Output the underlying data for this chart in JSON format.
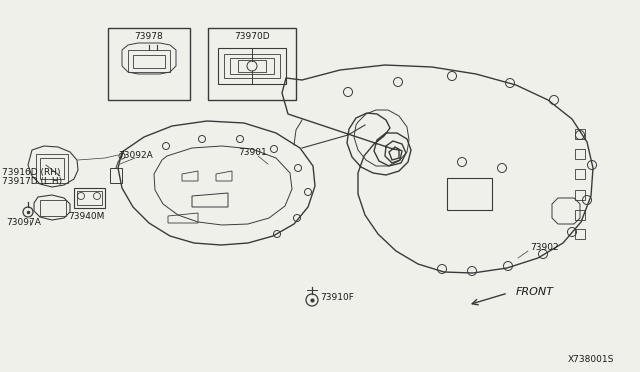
{
  "bg_color": "#f0f0eb",
  "line_color": "#3a3a3a",
  "diagram_id": "X738001S",
  "label_73978": "73978",
  "label_73970D": "73970D",
  "label_73902": "73902",
  "label_73901": "73901",
  "label_73092A": "73092A",
  "label_73940M": "73940M",
  "label_73097A": "73097A",
  "label_73916D": "73916D (RH)",
  "label_73917D": "73917D (L.H)",
  "label_73910F": "73910F",
  "label_FRONT": "FRONT"
}
